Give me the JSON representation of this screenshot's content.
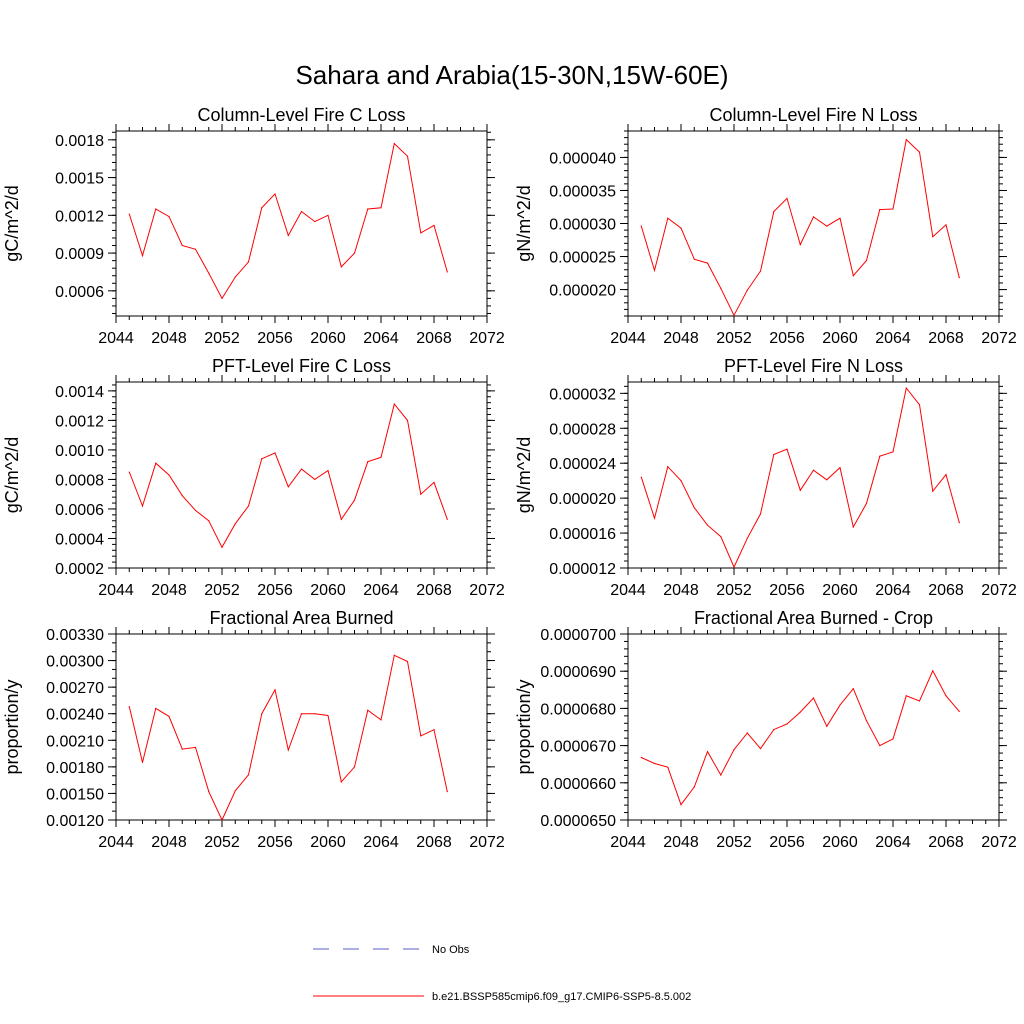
{
  "title": "Sahara and Arabia(15-30N,15W-60E)",
  "legend": [
    {
      "label": "No Obs",
      "color": "#5a5fc8",
      "style": "dashed"
    },
    {
      "label": "b.e21.BSSP585cmip6.f09_g17.CMIP6-SSP5-8.5.002",
      "color": "#ff0000",
      "style": "solid"
    }
  ],
  "chart_data": [
    {
      "type": "line",
      "title": "Column-Level Fire C Loss",
      "ylabel": "gC/m^2/d",
      "xlim": [
        2044,
        2072
      ],
      "ylim": [
        0.0004,
        0.00187
      ],
      "xticks": [
        "2044",
        "2048",
        "2052",
        "2056",
        "2060",
        "2064",
        "2068",
        "2072"
      ],
      "yticks": [
        {
          "v": 0.0006,
          "label": "0.0006"
        },
        {
          "v": 0.0009,
          "label": "0.0009"
        },
        {
          "v": 0.0012,
          "label": "0.0012"
        },
        {
          "v": 0.0015,
          "label": "0.0015"
        },
        {
          "v": 0.0018,
          "label": "0.0018"
        }
      ],
      "yminor_step": 6e-05,
      "series": [
        {
          "color": "#ff0000",
          "x": [
            2045,
            2046,
            2047,
            2048,
            2049,
            2050,
            2051,
            2052,
            2053,
            2054,
            2055,
            2056,
            2057,
            2058,
            2059,
            2060,
            2061,
            2062,
            2063,
            2064,
            2065,
            2066,
            2067,
            2068,
            2069
          ],
          "y": [
            0.00121,
            0.00088,
            0.00125,
            0.00119,
            0.00096,
            0.00093,
            0.00074,
            0.00054,
            0.00071,
            0.00083,
            0.00126,
            0.00137,
            0.00104,
            0.00123,
            0.00115,
            0.0012,
            0.00079,
            0.0009,
            0.00125,
            0.00126,
            0.00177,
            0.00167,
            0.00106,
            0.00112,
            0.00075
          ]
        }
      ]
    },
    {
      "type": "line",
      "title": "Column-Level Fire N Loss",
      "ylabel": "gN/m^2/d",
      "xlim": [
        2044,
        2072
      ],
      "ylim": [
        1.6e-05,
        4.4e-05
      ],
      "xticks": [
        "2044",
        "2048",
        "2052",
        "2056",
        "2060",
        "2064",
        "2068",
        "2072"
      ],
      "yticks": [
        {
          "v": 2e-05,
          "label": "0.000020"
        },
        {
          "v": 2.5e-05,
          "label": "0.000025"
        },
        {
          "v": 3e-05,
          "label": "0.000030"
        },
        {
          "v": 3.5e-05,
          "label": "0.000035"
        },
        {
          "v": 4e-05,
          "label": "0.000040"
        }
      ],
      "yminor_step": 1e-06,
      "series": [
        {
          "color": "#ff0000",
          "x": [
            2045,
            2046,
            2047,
            2048,
            2049,
            2050,
            2051,
            2052,
            2053,
            2054,
            2055,
            2056,
            2057,
            2058,
            2059,
            2060,
            2061,
            2062,
            2063,
            2064,
            2065,
            2066,
            2067,
            2068,
            2069
          ],
          "y": [
            2.96e-05,
            2.29e-05,
            3.08e-05,
            2.93e-05,
            2.46e-05,
            2.4e-05,
            2.02e-05,
            1.61e-05,
            1.99e-05,
            2.28e-05,
            3.18e-05,
            3.38e-05,
            2.68e-05,
            3.1e-05,
            2.96e-05,
            3.08e-05,
            2.21e-05,
            2.44e-05,
            3.21e-05,
            3.22e-05,
            4.27e-05,
            4.08e-05,
            2.8e-05,
            2.98e-05,
            2.18e-05
          ]
        }
      ]
    },
    {
      "type": "line",
      "title": "PFT-Level Fire C Loss",
      "ylabel": "gC/m^2/d",
      "xlim": [
        2044,
        2072
      ],
      "ylim": [
        0.0002,
        0.00146
      ],
      "xticks": [
        "2044",
        "2048",
        "2052",
        "2056",
        "2060",
        "2064",
        "2068",
        "2072"
      ],
      "yticks": [
        {
          "v": 0.0002,
          "label": "0.0002"
        },
        {
          "v": 0.0004,
          "label": "0.0004"
        },
        {
          "v": 0.0006,
          "label": "0.0006"
        },
        {
          "v": 0.0008,
          "label": "0.0008"
        },
        {
          "v": 0.001,
          "label": "0.0010"
        },
        {
          "v": 0.0012,
          "label": "0.0012"
        },
        {
          "v": 0.0014,
          "label": "0.0014"
        }
      ],
      "yminor_step": 4e-05,
      "series": [
        {
          "color": "#ff0000",
          "x": [
            2045,
            2046,
            2047,
            2048,
            2049,
            2050,
            2051,
            2052,
            2053,
            2054,
            2055,
            2056,
            2057,
            2058,
            2059,
            2060,
            2061,
            2062,
            2063,
            2064,
            2065,
            2066,
            2067,
            2068,
            2069
          ],
          "y": [
            0.00085,
            0.00062,
            0.00091,
            0.00083,
            0.00069,
            0.00059,
            0.00052,
            0.00034,
            0.0005,
            0.00062,
            0.00094,
            0.00098,
            0.00075,
            0.00087,
            0.0008,
            0.00086,
            0.00053,
            0.00066,
            0.00092,
            0.00095,
            0.00131,
            0.0012,
            0.0007,
            0.00078,
            0.00053
          ]
        }
      ]
    },
    {
      "type": "line",
      "title": "PFT-Level Fire N Loss",
      "ylabel": "gN/m^2/d",
      "xlim": [
        2044,
        2072
      ],
      "ylim": [
        1.2e-05,
        3.33e-05
      ],
      "xticks": [
        "2044",
        "2048",
        "2052",
        "2056",
        "2060",
        "2064",
        "2068",
        "2072"
      ],
      "yticks": [
        {
          "v": 1.2e-05,
          "label": "0.000012"
        },
        {
          "v": 1.6e-05,
          "label": "0.000016"
        },
        {
          "v": 2e-05,
          "label": "0.000020"
        },
        {
          "v": 2.4e-05,
          "label": "0.000024"
        },
        {
          "v": 2.8e-05,
          "label": "0.000028"
        },
        {
          "v": 3.2e-05,
          "label": "0.000032"
        }
      ],
      "yminor_step": 8e-07,
      "series": [
        {
          "color": "#ff0000",
          "x": [
            2045,
            2046,
            2047,
            2048,
            2049,
            2050,
            2051,
            2052,
            2053,
            2054,
            2055,
            2056,
            2057,
            2058,
            2059,
            2060,
            2061,
            2062,
            2063,
            2064,
            2065,
            2066,
            2067,
            2068,
            2069
          ],
          "y": [
            2.24e-05,
            1.77e-05,
            2.36e-05,
            2.2e-05,
            1.89e-05,
            1.69e-05,
            1.56e-05,
            1.21e-05,
            1.54e-05,
            1.82e-05,
            2.5e-05,
            2.56e-05,
            2.09e-05,
            2.32e-05,
            2.21e-05,
            2.35e-05,
            1.67e-05,
            1.94e-05,
            2.48e-05,
            2.53e-05,
            3.26e-05,
            3.07e-05,
            2.08e-05,
            2.27e-05,
            1.72e-05
          ]
        }
      ]
    },
    {
      "type": "line",
      "title": "Fractional Area Burned",
      "ylabel": "proportion/y",
      "xlim": [
        2044,
        2072
      ],
      "ylim": [
        0.0012,
        0.0033
      ],
      "xticks": [
        "2044",
        "2048",
        "2052",
        "2056",
        "2060",
        "2064",
        "2068",
        "2072"
      ],
      "yticks": [
        {
          "v": 0.0012,
          "label": "0.00120"
        },
        {
          "v": 0.0015,
          "label": "0.00150"
        },
        {
          "v": 0.0018,
          "label": "0.00180"
        },
        {
          "v": 0.0021,
          "label": "0.00210"
        },
        {
          "v": 0.0024,
          "label": "0.00240"
        },
        {
          "v": 0.0027,
          "label": "0.00270"
        },
        {
          "v": 0.003,
          "label": "0.00300"
        },
        {
          "v": 0.0033,
          "label": "0.00330"
        }
      ],
      "yminor_step": 0.0001,
      "series": [
        {
          "color": "#ff0000",
          "x": [
            2045,
            2046,
            2047,
            2048,
            2049,
            2050,
            2051,
            2052,
            2053,
            2054,
            2055,
            2056,
            2057,
            2058,
            2059,
            2060,
            2061,
            2062,
            2063,
            2064,
            2065,
            2066,
            2067,
            2068,
            2069
          ],
          "y": [
            0.00248,
            0.00185,
            0.00246,
            0.00237,
            0.002,
            0.00202,
            0.00152,
            0.0012,
            0.00153,
            0.00171,
            0.0024,
            0.00267,
            0.00199,
            0.0024,
            0.0024,
            0.00238,
            0.00163,
            0.0018,
            0.00244,
            0.00233,
            0.00306,
            0.00299,
            0.00215,
            0.00222,
            0.00152
          ]
        }
      ]
    },
    {
      "type": "line",
      "title": "Fractional Area Burned - Crop",
      "ylabel": "proportion/y",
      "xlim": [
        2044,
        2072
      ],
      "ylim": [
        6.5e-05,
        7e-05
      ],
      "xticks": [
        "2044",
        "2048",
        "2052",
        "2056",
        "2060",
        "2064",
        "2068",
        "2072"
      ],
      "yticks": [
        {
          "v": 6.5e-05,
          "label": "0.0000650"
        },
        {
          "v": 6.6e-05,
          "label": "0.0000660"
        },
        {
          "v": 6.7e-05,
          "label": "0.0000670"
        },
        {
          "v": 6.8e-05,
          "label": "0.0000680"
        },
        {
          "v": 6.9e-05,
          "label": "0.0000690"
        },
        {
          "v": 7e-05,
          "label": "0.0000700"
        }
      ],
      "yminor_step": 2e-07,
      "series": [
        {
          "color": "#ff0000",
          "x": [
            2045,
            2046,
            2047,
            2048,
            2049,
            2050,
            2051,
            2052,
            2053,
            2054,
            2055,
            2056,
            2057,
            2058,
            2059,
            2060,
            2061,
            2062,
            2063,
            2064,
            2065,
            2066,
            2067,
            2068,
            2069
          ],
          "y": [
            6.668e-05,
            6.652e-05,
            6.642e-05,
            6.541e-05,
            6.589e-05,
            6.684e-05,
            6.621e-05,
            6.689e-05,
            6.734e-05,
            6.692e-05,
            6.743e-05,
            6.758e-05,
            6.79e-05,
            6.828e-05,
            6.752e-05,
            6.809e-05,
            6.853e-05,
            6.767e-05,
            6.7e-05,
            6.718e-05,
            6.834e-05,
            6.82e-05,
            6.901e-05,
            6.834e-05,
            6.792e-05
          ]
        }
      ]
    }
  ]
}
